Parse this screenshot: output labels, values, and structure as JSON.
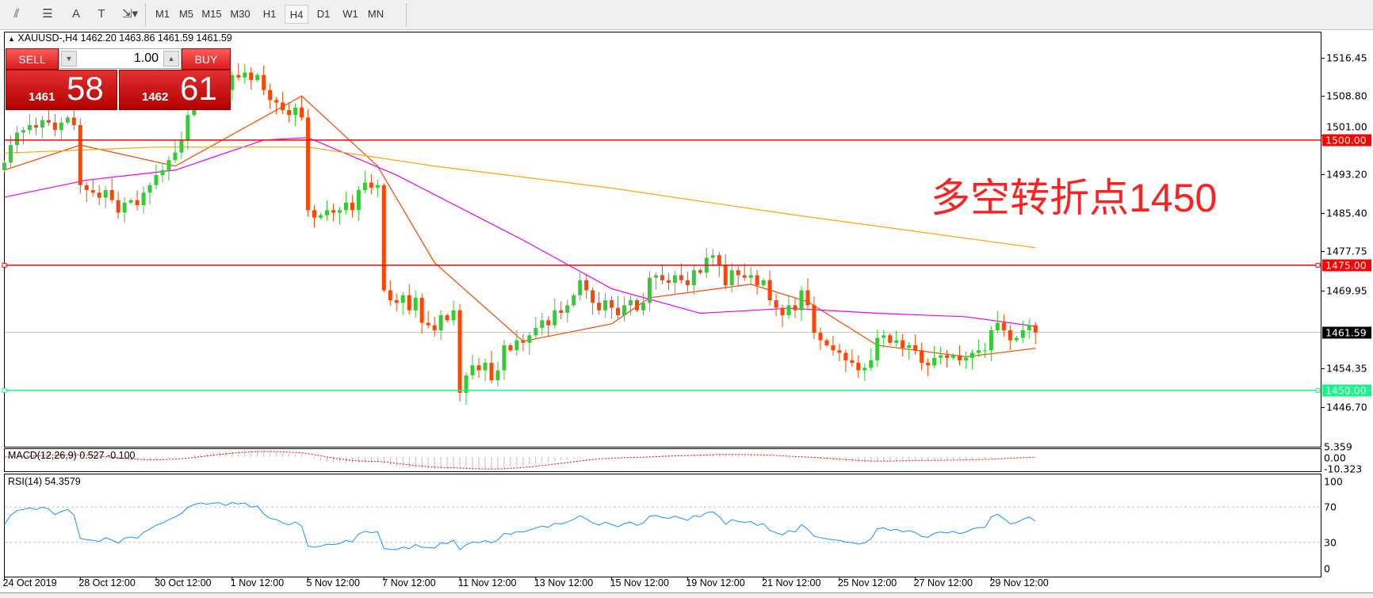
{
  "toolbar": {
    "tools": [
      {
        "name": "fibonacci-expansion-icon",
        "glyph": "⫽"
      },
      {
        "name": "fibonacci-fan-icon",
        "glyph": "☰"
      },
      {
        "name": "text-tool-icon",
        "glyph": "A"
      },
      {
        "name": "text-label-icon",
        "glyph": "T"
      },
      {
        "name": "arrows-tool-icon",
        "glyph": "⇲▾"
      }
    ],
    "timeframes": [
      "M1",
      "M5",
      "M15",
      "M30",
      "H1",
      "H4",
      "D1",
      "W1",
      "MN"
    ],
    "active_timeframe": "H4"
  },
  "header": {
    "symbol_line": "XAUUSD-,H4  1462.20 1463.86 1461.59 1461.59"
  },
  "trade_panel": {
    "sell_label": "SELL",
    "buy_label": "BUY",
    "lots": "1.00",
    "sell_small": "1461",
    "sell_large": "58",
    "buy_small": "1462",
    "buy_large": "61"
  },
  "annotation": "多空转折点1450",
  "price_axis": {
    "labels": [
      "1516.45",
      "1508.80",
      "1501.00",
      "1493.20",
      "1485.40",
      "1477.75",
      "1469.95",
      "1454.35",
      "1446.70"
    ],
    "range": [
      1446.7,
      1516.45
    ]
  },
  "levels": [
    {
      "price": 1500.0,
      "label": "1500.00",
      "color": "#ff0000",
      "text_color": "#ffffff"
    },
    {
      "price": 1475.0,
      "label": "1475.00",
      "color": "#ff0000",
      "text_color": "#ffffff"
    },
    {
      "price": 1450.0,
      "label": "1450.00",
      "color": "#19f58a",
      "text_color": "#ffffff"
    }
  ],
  "current_price": {
    "price": 1461.59,
    "label": "1461.59",
    "color": "#000000",
    "line_color": "#c0c0c0"
  },
  "time_axis": [
    "24 Oct 2019",
    "28 Oct 12:00",
    "30 Oct 12:00",
    "1 Nov 12:00",
    "5 Nov 12:00",
    "7 Nov 12:00",
    "11 Nov 12:00",
    "13 Nov 12:00",
    "15 Nov 12:00",
    "19 Nov 12:00",
    "21 Nov 12:00",
    "25 Nov 12:00",
    "27 Nov 12:00",
    "29 Nov 12:00"
  ],
  "macd": {
    "label": "MACD(12,26,9) 0.527 -0.100",
    "axis": [
      "5.359",
      "0.00",
      "-10.323"
    ],
    "range": [
      -10.323,
      5.359
    ],
    "hist_color": "#c0c0c0",
    "signal_color": "#ff0000"
  },
  "rsi": {
    "label": "RSI(14) 54.3579",
    "axis": [
      "100",
      "70",
      "30",
      "0"
    ],
    "levels": [
      70,
      30
    ],
    "color": "#1e90ff"
  },
  "chart_data": {
    "type": "candlestick",
    "symbol": "XAUUSD-",
    "timeframe": "H4",
    "up_color": "#32cd32",
    "down_color": "#ff4500",
    "closes": [
      1495.5,
      1499,
      1501.5,
      1502,
      1503,
      1502.5,
      1504,
      1503.5,
      1502,
      1503.5,
      1504.5,
      1503,
      1491,
      1490,
      1489.5,
      1488.5,
      1490,
      1488,
      1485.5,
      1487.5,
      1488,
      1487,
      1489.5,
      1491,
      1493,
      1494,
      1496,
      1497.5,
      1500,
      1505,
      1508,
      1510,
      1509.5,
      1510.5,
      1511,
      1510,
      1513,
      1512.5,
      1513.5,
      1512,
      1513,
      1510,
      1508,
      1507.5,
      1506,
      1505,
      1506.5,
      1504.5,
      1486,
      1484.5,
      1485,
      1486,
      1485.5,
      1486,
      1487.5,
      1486,
      1490,
      1491.5,
      1490.5,
      1491,
      1470,
      1468,
      1467.5,
      1469,
      1466,
      1468.5,
      1463.5,
      1463,
      1462,
      1465,
      1464,
      1466,
      1449.5,
      1453,
      1455,
      1454,
      1455.5,
      1452,
      1454,
      1459,
      1458,
      1460,
      1459.5,
      1461,
      1462.5,
      1464,
      1463,
      1466,
      1465.5,
      1467,
      1469,
      1472,
      1470,
      1467.5,
      1466,
      1468,
      1466.5,
      1465,
      1467,
      1468,
      1466,
      1467.5,
      1472.5,
      1473,
      1472,
      1471.5,
      1473,
      1472,
      1471,
      1474,
      1473.5,
      1476.5,
      1477,
      1475,
      1471,
      1474,
      1473,
      1472.5,
      1473,
      1471,
      1472,
      1468,
      1466.5,
      1465,
      1467,
      1466,
      1470,
      1467,
      1461.5,
      1460,
      1459,
      1458,
      1457.5,
      1456,
      1455.5,
      1454,
      1454.5,
      1456,
      1460.5,
      1461,
      1459.5,
      1460,
      1458.5,
      1459,
      1458,
      1455.5,
      1455,
      1456.5,
      1457,
      1456.5,
      1457,
      1456,
      1456.5,
      1457.5,
      1458,
      1458,
      1462,
      1463.5,
      1462,
      1460,
      1460.5,
      1462,
      1463,
      1461.59
    ],
    "moving_averages": [
      {
        "color": "#ff4500",
        "points": [
          [
            0,
            1494
          ],
          [
            12,
            1499
          ],
          [
            27,
            1494.8
          ],
          [
            47,
            1508.8
          ],
          [
            59,
            1494.8
          ],
          [
            68,
            1475.5
          ],
          [
            82,
            1459.8
          ],
          [
            96,
            1463.3
          ],
          [
            102,
            1468.5
          ],
          [
            118,
            1471.2
          ],
          [
            127,
            1467.7
          ],
          [
            138,
            1459
          ],
          [
            152,
            1456.7
          ],
          [
            163,
            1458.4
          ]
        ]
      },
      {
        "color": "#ee00ee",
        "points": [
          [
            0,
            1488.6
          ],
          [
            13,
            1492
          ],
          [
            27,
            1494
          ],
          [
            41,
            1500
          ],
          [
            48,
            1500.5
          ],
          [
            62,
            1493
          ],
          [
            82,
            1480
          ],
          [
            96,
            1470.3
          ],
          [
            110,
            1465.4
          ],
          [
            124,
            1466.4
          ],
          [
            138,
            1465.4
          ],
          [
            152,
            1464.7
          ],
          [
            163,
            1462.8
          ]
        ]
      },
      {
        "color": "#ffa500",
        "points": [
          [
            0,
            1497.4
          ],
          [
            24,
            1498.6
          ],
          [
            48,
            1498.6
          ],
          [
            68,
            1494.8
          ],
          [
            96,
            1490.4
          ],
          [
            124,
            1485.2
          ],
          [
            163,
            1478.5
          ]
        ]
      }
    ]
  }
}
